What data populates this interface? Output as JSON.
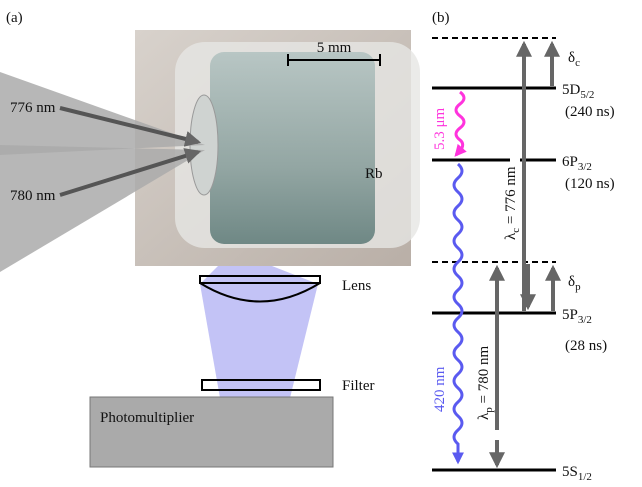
{
  "panel_a": {
    "label": "(a)",
    "scale_bar": "5 mm",
    "beams": [
      "776 nm",
      "780 nm"
    ],
    "sample": "Rb",
    "lens": "Lens",
    "filter": "Filter",
    "detector": "Photomultiplier"
  },
  "panel_b": {
    "label": "(b)",
    "levels": [
      {
        "name": "5D",
        "sub": "5/2",
        "lifetime": "(240 ns)"
      },
      {
        "name": "6P",
        "sub": "3/2",
        "lifetime": "(120 ns)"
      },
      {
        "name": "5P",
        "sub": "3/2",
        "lifetime": "(28 ns)"
      },
      {
        "name": "5S",
        "sub": "1/2"
      }
    ],
    "detunings": [
      {
        "symbol": "δ",
        "sub": "c"
      },
      {
        "symbol": "δ",
        "sub": "p"
      }
    ],
    "transitions": [
      {
        "symbol": "λ",
        "sub": "c",
        "text": " = 776 nm"
      },
      {
        "symbol": "λ",
        "sub": "p",
        "text": " = 780 nm"
      }
    ],
    "emissions": [
      "5.3 μm",
      "420 nm"
    ]
  }
}
